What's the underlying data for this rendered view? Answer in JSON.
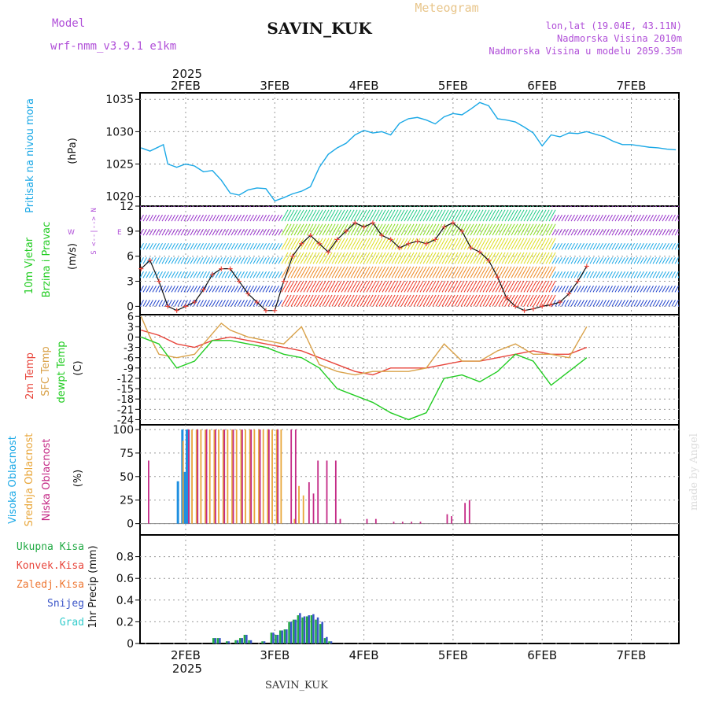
{
  "header": {
    "model_label": "Model",
    "model_name": "wrf-nmm_v3.9.1 e1km",
    "station": "SAVIN_KUK",
    "title": "Meteogram",
    "lonlat": "lon,lat (19.04E, 43.11N)",
    "elevation": "Nadmorska Visina 2010m",
    "model_elevation": "Nadmorska Visina u modelu 2059.35m",
    "footer_station": "SAVIN_KUK",
    "credit": "made by Angel"
  },
  "axis": {
    "year": "2025",
    "day_labels": [
      "2FEB",
      "3FEB",
      "4FEB",
      "5FEB",
      "6FEB",
      "7FEB"
    ]
  },
  "colors": {
    "pressure": "#1aa8e6",
    "temp2m": "#e8463c",
    "sfc_temp": "#d9a24a",
    "dewpt": "#22cc22",
    "clouds_high": "#1f8fe0",
    "clouds_mid": "#e8a63a",
    "clouds_low": "#c42a86",
    "precip_total": "#22aa44",
    "precip_snow": "#3a55c8",
    "header_purple": "#b04fd8",
    "header_orange": "#e8c58a"
  },
  "panels": {
    "pressure": {
      "ylabel": "Pritisak na nivou mora",
      "unit": "(hPa)",
      "ticks": [
        "1020",
        "1025",
        "1030",
        "1035"
      ]
    },
    "wind": {
      "ylabel1": "10m Vjetar",
      "ylabel2": "Brzina i Pravac",
      "unit": "(m/s)",
      "compass_ns": "S <--|--> N",
      "compass_w": "W",
      "compass_e": "E",
      "ticks": [
        "0",
        "3",
        "6",
        "9",
        "12"
      ]
    },
    "temperature": {
      "label_2m": "2m Temp",
      "label_sfc": "SFC Temp",
      "label_dewpt": "dewpt Temp",
      "unit": "(C)",
      "ticks": [
        "6",
        "3",
        "0",
        "-3",
        "-6",
        "-9",
        "-12",
        "-15",
        "-18",
        "-21",
        "-24"
      ]
    },
    "clouds": {
      "label_high": "Visoka Oblacnost",
      "label_mid": "Srednja Oblacnost",
      "label_low": "Niska Oblacnost",
      "unit": "(%)",
      "ticks": [
        "0",
        "25",
        "50",
        "75",
        "100"
      ]
    },
    "precip": {
      "legend": [
        "Ukupna Kisa",
        "Konvek.Kisa",
        "Zaledj.Kisa",
        "Snijeg",
        "Grad"
      ],
      "legend_colors": [
        "#22aa44",
        "#e8463c",
        "#ee7733",
        "#3a55c8",
        "#33cccc"
      ],
      "ylabel": "1hr Precip (mm)",
      "ticks": [
        "0",
        "0.2",
        "0.4",
        "0.6",
        "0.8"
      ]
    }
  },
  "chart_data": [
    {
      "type": "line",
      "title": "Pritisak na nivou mora",
      "ylabel": "(hPa)",
      "x_unit": "days since 1FEB 00UTC",
      "ylim": [
        1018.5,
        1036
      ],
      "series": [
        {
          "name": "Pritisak na nivou mora",
          "x": [
            0.5,
            0.6,
            0.75,
            0.8,
            0.9,
            1.0,
            1.1,
            1.2,
            1.3,
            1.4,
            1.5,
            1.6,
            1.7,
            1.8,
            1.9,
            2.0,
            2.1,
            2.2,
            2.3,
            2.4,
            2.5,
            2.6,
            2.7,
            2.8,
            2.9,
            3.0,
            3.1,
            3.2,
            3.3,
            3.4,
            3.5,
            3.6,
            3.7,
            3.8,
            3.9,
            4.0,
            4.1,
            4.2,
            4.3,
            4.4,
            4.5,
            4.6,
            4.7,
            4.8,
            4.9,
            5.0,
            5.1,
            5.2,
            5.3,
            5.4,
            5.5,
            5.6,
            5.7,
            5.8,
            5.9,
            6.0,
            6.1,
            6.2,
            6.3,
            6.4,
            6.5
          ],
          "values": [
            1027.5,
            1027,
            1028,
            1025,
            1024.5,
            1025,
            1024.7,
            1023.8,
            1024,
            1022.5,
            1020.5,
            1020.2,
            1021,
            1021.3,
            1021.2,
            1019.3,
            1019.8,
            1020.4,
            1020.8,
            1021.5,
            1024.5,
            1026.5,
            1027.5,
            1028.2,
            1029.5,
            1030.2,
            1029.8,
            1030,
            1029.5,
            1031.3,
            1032,
            1032.2,
            1031.8,
            1031.2,
            1032.3,
            1032.8,
            1032.6,
            1033.5,
            1034.5,
            1034,
            1032,
            1031.8,
            1031.5,
            1030.7,
            1029.8,
            1027.8,
            1029.5,
            1029.2,
            1029.8,
            1029.7,
            1030,
            1029.6,
            1029.2,
            1028.5,
            1028.0,
            1028.0,
            1027.8,
            1027.6,
            1027.5,
            1027.3,
            1027.2
          ]
        }
      ]
    },
    {
      "type": "line",
      "title": "10m Vjetar Brzina i Pravac",
      "ylabel": "(m/s)",
      "x_unit": "days since 1FEB 00UTC",
      "ylim": [
        -1,
        12
      ],
      "series": [
        {
          "name": "Brzina",
          "x": [
            0.5,
            0.6,
            0.7,
            0.8,
            0.9,
            1.0,
            1.1,
            1.2,
            1.3,
            1.4,
            1.5,
            1.6,
            1.7,
            1.8,
            1.9,
            2.0,
            2.1,
            2.2,
            2.3,
            2.4,
            2.5,
            2.6,
            2.7,
            2.8,
            2.9,
            3.0,
            3.1,
            3.2,
            3.3,
            3.4,
            3.5,
            3.6,
            3.7,
            3.8,
            3.9,
            4.0,
            4.1,
            4.2,
            4.3,
            4.4,
            4.5,
            4.6,
            4.7,
            4.8,
            4.9,
            5.0,
            5.1,
            5.2,
            5.3,
            5.4,
            5.5
          ],
          "values": [
            4.5,
            5.5,
            3,
            0,
            -0.5,
            0,
            0.5,
            2,
            3.8,
            4.5,
            4.5,
            3,
            1.5,
            0.5,
            -0.5,
            -0.5,
            3,
            6,
            7.5,
            8.5,
            7.5,
            6.5,
            8,
            9,
            10,
            9.5,
            10,
            8.5,
            8,
            7,
            7.5,
            7.8,
            7.5,
            8,
            9.5,
            10,
            9,
            7,
            6.5,
            5.5,
            3.5,
            1,
            0,
            -0.5,
            -0.3,
            0,
            0.2,
            0.5,
            1.5,
            3,
            4.8
          ]
        }
      ]
    },
    {
      "type": "line",
      "title": "Temperature",
      "ylabel": "(C)",
      "x_unit": "days since 1FEB 00UTC",
      "ylim": [
        -25.5,
        6.5
      ],
      "series": [
        {
          "name": "2m Temp",
          "x": [
            0.5,
            0.7,
            0.9,
            1.1,
            1.3,
            1.5,
            1.7,
            1.9,
            2.1,
            2.3,
            2.5,
            2.7,
            2.9,
            3.1,
            3.3,
            3.5,
            3.7,
            3.9,
            4.1,
            4.3,
            4.5,
            4.7,
            4.9,
            5.1,
            5.3,
            5.5
          ],
          "values": [
            2,
            0.5,
            -2,
            -3,
            -1,
            0,
            -1,
            -2,
            -3,
            -4,
            -6,
            -8,
            -10,
            -11,
            -9,
            -9,
            -9,
            -8,
            -7,
            -7,
            -6,
            -5,
            -4,
            -5,
            -5,
            -3
          ]
        },
        {
          "name": "SFC Temp",
          "x": [
            0.5,
            0.6,
            0.7,
            0.9,
            1.1,
            1.3,
            1.4,
            1.5,
            1.7,
            1.9,
            2.1,
            2.3,
            2.5,
            2.7,
            2.9,
            3.1,
            3.3,
            3.5,
            3.7,
            3.9,
            4.1,
            4.3,
            4.5,
            4.7,
            4.9,
            5.1,
            5.3,
            5.5
          ],
          "values": [
            6,
            0,
            -5,
            -6,
            -5,
            1,
            4,
            2,
            0,
            -1,
            -2,
            3,
            -8,
            -10,
            -11,
            -10,
            -10,
            -10,
            -9,
            -2,
            -7,
            -7,
            -4,
            -2,
            -5,
            -5,
            -6,
            3
          ]
        },
        {
          "name": "dewpt Temp",
          "x": [
            0.5,
            0.7,
            0.9,
            1.1,
            1.3,
            1.5,
            1.7,
            1.9,
            2.1,
            2.3,
            2.5,
            2.7,
            2.9,
            3.1,
            3.3,
            3.5,
            3.7,
            3.9,
            4.1,
            4.3,
            4.5,
            4.7,
            4.9,
            5.1,
            5.3,
            5.5
          ],
          "values": [
            0,
            -2,
            -9,
            -7,
            -1,
            -1,
            -2,
            -3,
            -5,
            -6,
            -9,
            -15,
            -17,
            -19,
            -22,
            -24,
            -22,
            -12,
            -11,
            -13,
            -10,
            -5,
            -7,
            -14,
            -10,
            -6
          ]
        }
      ]
    },
    {
      "type": "bar",
      "title": "Oblacnost",
      "ylabel": "(%)",
      "x_unit": "days since 1FEB 00UTC",
      "ylim": [
        0,
        100
      ],
      "series": [
        {
          "name": "Visoka Oblacnost",
          "x": [
            0.9,
            0.95,
            0.975,
            1.0,
            1.02
          ],
          "values": [
            45,
            100,
            55,
            100,
            100
          ]
        },
        {
          "name": "Srednja Oblacnost",
          "x": [
            0.95,
            1.05,
            1.1,
            1.15,
            1.2,
            1.25,
            1.3,
            1.35,
            1.4,
            1.45,
            1.5,
            1.55,
            1.6,
            1.65,
            1.7,
            1.75,
            1.8,
            1.85,
            1.9,
            1.95,
            2.0,
            2.05,
            2.2,
            2.25,
            2.3
          ],
          "values": [
            88,
            100,
            100,
            100,
            100,
            100,
            100,
            100,
            100,
            100,
            100,
            100,
            100,
            100,
            100,
            100,
            100,
            100,
            100,
            100,
            100,
            100,
            5,
            40,
            30
          ]
        },
        {
          "name": "Niska Oblacnost",
          "x": [
            0.55,
            1.0,
            1.1,
            1.2,
            1.3,
            1.4,
            1.5,
            1.6,
            1.7,
            1.8,
            1.9,
            2.0,
            2.15,
            2.2,
            2.35,
            2.4,
            2.45,
            2.55,
            2.65,
            2.7,
            3.0,
            3.1,
            3.3,
            3.4,
            3.5,
            3.6,
            3.9,
            3.95,
            4.1,
            4.15
          ],
          "values": [
            67,
            100,
            100,
            100,
            100,
            100,
            100,
            100,
            100,
            100,
            100,
            100,
            100,
            100,
            44,
            32,
            67,
            67,
            67,
            5,
            5,
            5,
            2,
            2,
            2,
            2,
            10,
            8,
            22,
            25
          ]
        }
      ]
    },
    {
      "type": "bar",
      "title": "1hr Precip",
      "ylabel": "1hr Precip (mm)",
      "x_unit": "days since 1FEB 00UTC",
      "ylim": [
        0,
        1.0
      ],
      "series": [
        {
          "name": "Ukupna Kisa",
          "x": [
            1.3,
            1.35,
            1.45,
            1.55,
            1.6,
            1.65,
            1.7,
            1.85,
            1.95,
            2.0,
            2.05,
            2.1,
            2.15,
            2.2,
            2.25,
            2.3,
            2.35,
            2.4,
            2.45,
            2.5,
            2.55,
            2.6
          ],
          "values": [
            0.05,
            0.05,
            0.02,
            0.03,
            0.05,
            0.08,
            0.03,
            0.02,
            0.1,
            0.08,
            0.12,
            0.13,
            0.2,
            0.22,
            0.26,
            0.24,
            0.25,
            0.26,
            0.22,
            0.18,
            0.05,
            0.02
          ]
        },
        {
          "name": "Snijeg",
          "x": [
            1.3,
            1.35,
            1.45,
            1.55,
            1.6,
            1.65,
            1.7,
            1.85,
            1.95,
            2.0,
            2.05,
            2.1,
            2.15,
            2.2,
            2.25,
            2.3,
            2.35,
            2.4,
            2.45,
            2.5,
            2.55,
            2.6
          ],
          "values": [
            0.05,
            0.05,
            0.02,
            0.03,
            0.05,
            0.08,
            0.03,
            0.02,
            0.1,
            0.08,
            0.12,
            0.13,
            0.2,
            0.22,
            0.28,
            0.25,
            0.26,
            0.27,
            0.24,
            0.2,
            0.06,
            0.02
          ]
        }
      ]
    }
  ]
}
